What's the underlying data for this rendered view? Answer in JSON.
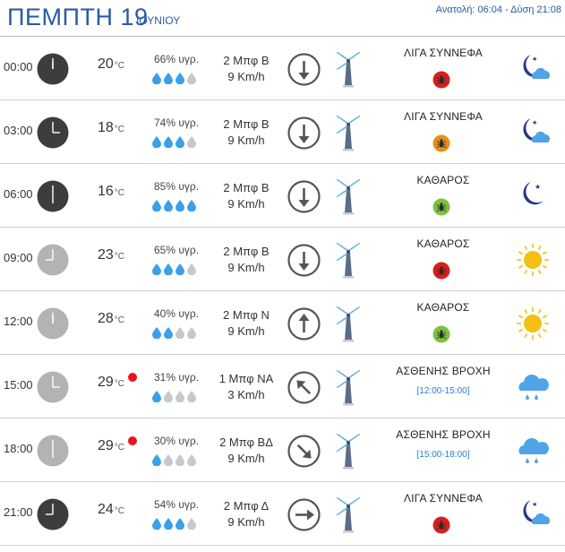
{
  "header": {
    "day": "ΠΕΜΠΤΗ 19",
    "month": "ΙΟΥΝΙΟΥ",
    "sun": "Ανατολή: 06:04 - Δύση 21:08"
  },
  "temp_unit": "°C",
  "rows": [
    {
      "time": "00:00",
      "temp": "20",
      "hum": "66% υγρ.",
      "drops": 3,
      "wind_force": "2 Μπφ Β",
      "wind_speed": "9 Km/h",
      "dir_icon": "arrow-down-icon",
      "cond": "ΛΙΓΑ ΣΥΝΝΕΦΑ",
      "cond_range": "",
      "bug_color": "#d81f1f",
      "wx_icon": "night-cloud-icon",
      "clock_dark": true,
      "rain_dot": false
    },
    {
      "time": "03:00",
      "temp": "18",
      "hum": "74% υγρ.",
      "drops": 3,
      "wind_force": "2 Μπφ Β",
      "wind_speed": "9 Km/h",
      "dir_icon": "arrow-down-icon",
      "cond": "ΛΙΓΑ ΣΥΝΝΕΦΑ",
      "cond_range": "",
      "bug_color": "#e8901a",
      "wx_icon": "night-cloud-icon",
      "clock_dark": true,
      "rain_dot": false
    },
    {
      "time": "06:00",
      "temp": "16",
      "hum": "85% υγρ.",
      "drops": 4,
      "wind_force": "2 Μπφ Β",
      "wind_speed": "9 Km/h",
      "dir_icon": "arrow-down-icon",
      "cond": "ΚΑΘΑΡΟΣ",
      "cond_range": "",
      "bug_color": "#7cc242",
      "wx_icon": "moon-icon",
      "clock_dark": true,
      "rain_dot": false
    },
    {
      "time": "09:00",
      "temp": "23",
      "hum": "65% υγρ.",
      "drops": 3,
      "wind_force": "2 Μπφ Β",
      "wind_speed": "9 Km/h",
      "dir_icon": "arrow-down-icon",
      "cond": "ΚΑΘΑΡΟΣ",
      "cond_range": "",
      "bug_color": "#d81f1f",
      "wx_icon": "sun-icon",
      "clock_dark": false,
      "rain_dot": false
    },
    {
      "time": "12:00",
      "temp": "28",
      "hum": "40% υγρ.",
      "drops": 2,
      "wind_force": "2 Μπφ Ν",
      "wind_speed": "9 Km/h",
      "dir_icon": "arrow-up-icon",
      "cond": "ΚΑΘΑΡΟΣ",
      "cond_range": "",
      "bug_color": "#7cc242",
      "wx_icon": "sun-icon",
      "clock_dark": false,
      "rain_dot": false
    },
    {
      "time": "15:00",
      "temp": "29",
      "hum": "31% υγρ.",
      "drops": 1,
      "wind_force": "1 Μπφ ΝΑ",
      "wind_speed": "3 Km/h",
      "dir_icon": "arrow-up-left-icon",
      "cond": "ΑΣΘΕΝΗΣ ΒΡΟΧΗ",
      "cond_range": "[12:00-15:00]",
      "bug_color": "",
      "wx_icon": "rain-cloud-icon",
      "clock_dark": false,
      "rain_dot": true
    },
    {
      "time": "18:00",
      "temp": "29",
      "hum": "30% υγρ.",
      "drops": 1,
      "wind_force": "2 Μπφ ΒΔ",
      "wind_speed": "9 Km/h",
      "dir_icon": "arrow-down-right-icon",
      "cond": "ΑΣΘΕΝΗΣ ΒΡΟΧΗ",
      "cond_range": "[15:00-18:00]",
      "bug_color": "",
      "wx_icon": "rain-cloud-icon",
      "clock_dark": false,
      "rain_dot": true
    },
    {
      "time": "21:00",
      "temp": "24",
      "hum": "54% υγρ.",
      "drops": 3,
      "wind_force": "2 Μπφ Δ",
      "wind_speed": "9 Km/h",
      "dir_icon": "arrow-right-icon",
      "cond": "ΛΙΓΑ ΣΥΝΝΕΦΑ",
      "cond_range": "",
      "bug_color": "#d81f1f",
      "wx_icon": "night-cloud-icon",
      "clock_dark": true,
      "rain_dot": false
    }
  ]
}
